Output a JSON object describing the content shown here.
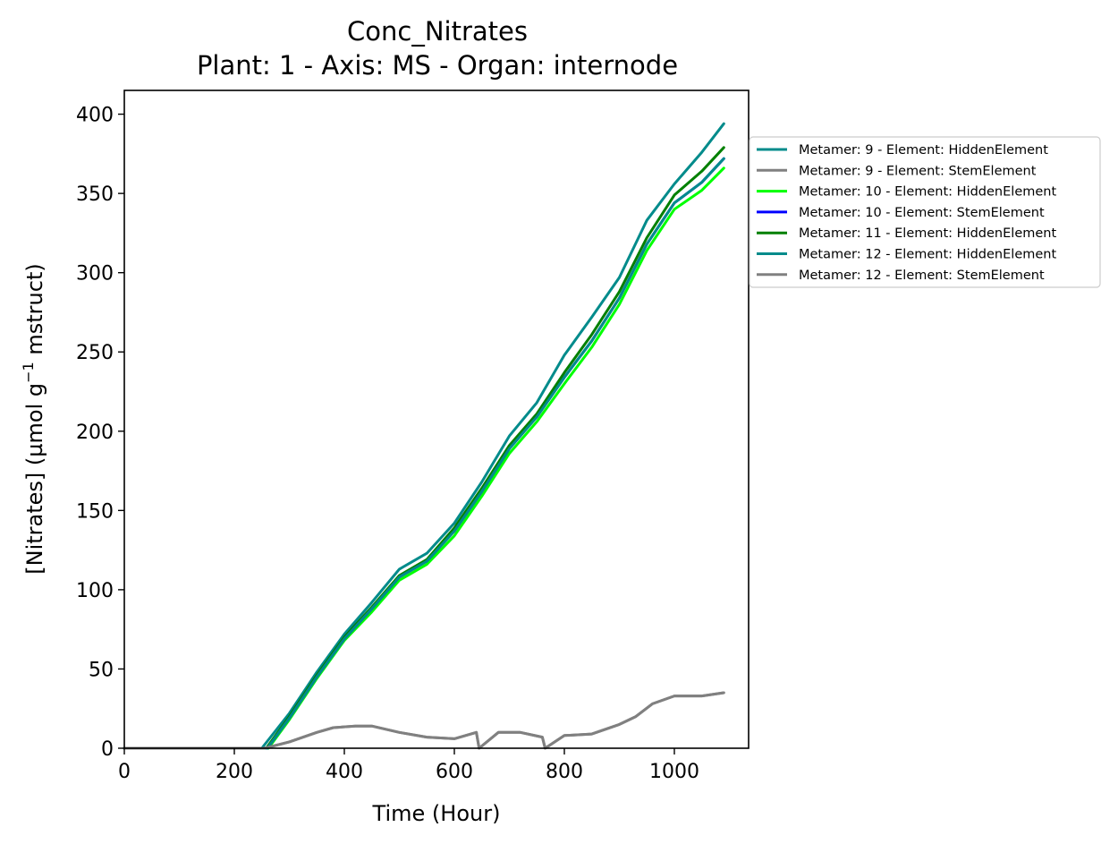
{
  "chart_data": {
    "type": "line",
    "title": "Conc_Nitrates",
    "subtitle": "Plant: 1 - Axis: MS - Organ: internode",
    "xlabel": "Time (Hour)",
    "ylabel_main": "[Nitrates] (µmol g",
    "ylabel_sup": "−1",
    "ylabel_tail": " mstruct)",
    "xlim": [
      0,
      1135
    ],
    "ylim": [
      0,
      415
    ],
    "xticks": [
      0,
      200,
      400,
      600,
      800,
      1000
    ],
    "yticks": [
      0,
      50,
      100,
      150,
      200,
      250,
      300,
      350,
      400
    ],
    "legend_position": "outside-right-top",
    "series": [
      {
        "name": "Metamer: 9 - Element: HiddenElement",
        "color": "#008b8b",
        "x": [
          0,
          250,
          300,
          350,
          400,
          450,
          500,
          550,
          600,
          650,
          700,
          750,
          800,
          850,
          900,
          950,
          1000,
          1050,
          1090
        ],
        "y": [
          0,
          0,
          22,
          48,
          72,
          92,
          113,
          123,
          142,
          168,
          197,
          218,
          248,
          272,
          297,
          333,
          356,
          376,
          394
        ]
      },
      {
        "name": "Metamer: 9 - Element: StemElement",
        "color": "#808080",
        "x": [
          0,
          255,
          300,
          350,
          380,
          420,
          450,
          500,
          550,
          600,
          640,
          645,
          680,
          720,
          760,
          765,
          800,
          850,
          900,
          930,
          960,
          1000,
          1050,
          1090
        ],
        "y": [
          0,
          0,
          4,
          10,
          13,
          14,
          14,
          10,
          7,
          6,
          10,
          0,
          10,
          10,
          7,
          0,
          8,
          9,
          15,
          20,
          28,
          33,
          33,
          35
        ]
      },
      {
        "name": "Metamer: 10 - Element: HiddenElement",
        "color": "#00ff00",
        "x": [
          0,
          262,
          300,
          350,
          400,
          450,
          500,
          550,
          600,
          650,
          700,
          750,
          800,
          850,
          900,
          950,
          1000,
          1050,
          1090
        ],
        "y": [
          0,
          0,
          18,
          44,
          68,
          86,
          106,
          116,
          134,
          159,
          186,
          206,
          230,
          253,
          280,
          314,
          340,
          352,
          366
        ]
      },
      {
        "name": "Metamer: 10 - Element: StemElement",
        "color": "#0000ff",
        "x": [
          0,
          260,
          300,
          350,
          400,
          450,
          500,
          550,
          600,
          650,
          700,
          750,
          800,
          850,
          900,
          950,
          1000,
          1050,
          1090
        ],
        "y": [
          0,
          0,
          19,
          45,
          69,
          88,
          108,
          118,
          137,
          162,
          189,
          209,
          234,
          257,
          284,
          318,
          344,
          357,
          372
        ]
      },
      {
        "name": "Metamer: 11 - Element: HiddenElement",
        "color": "#008000",
        "x": [
          0,
          258,
          300,
          350,
          400,
          450,
          500,
          550,
          600,
          650,
          700,
          750,
          800,
          850,
          900,
          950,
          1000,
          1050,
          1090
        ],
        "y": [
          0,
          0,
          20,
          46,
          70,
          89,
          109,
          119,
          139,
          164,
          191,
          211,
          237,
          261,
          288,
          322,
          349,
          364,
          379
        ]
      },
      {
        "name": "Metamer: 12 - Element: HiddenElement",
        "color": "#008b8b",
        "x": [
          0,
          260,
          300,
          350,
          400,
          450,
          500,
          550,
          600,
          650,
          700,
          750,
          800,
          850,
          900,
          950,
          1000,
          1050,
          1090
        ],
        "y": [
          0,
          0,
          19,
          45,
          69,
          88,
          108,
          118,
          137,
          162,
          189,
          209,
          234,
          257,
          284,
          318,
          344,
          357,
          372
        ]
      },
      {
        "name": "Metamer: 12 - Element: StemElement",
        "color": "#808080",
        "x": [
          0,
          255,
          300,
          350,
          380,
          420,
          450,
          500,
          550,
          600,
          640,
          645,
          680,
          720,
          760,
          765,
          800,
          850,
          900,
          930,
          960,
          1000,
          1050,
          1090
        ],
        "y": [
          0,
          0,
          4,
          10,
          13,
          14,
          14,
          10,
          7,
          6,
          10,
          0,
          10,
          10,
          7,
          0,
          8,
          9,
          15,
          20,
          28,
          33,
          33,
          35
        ]
      }
    ]
  }
}
